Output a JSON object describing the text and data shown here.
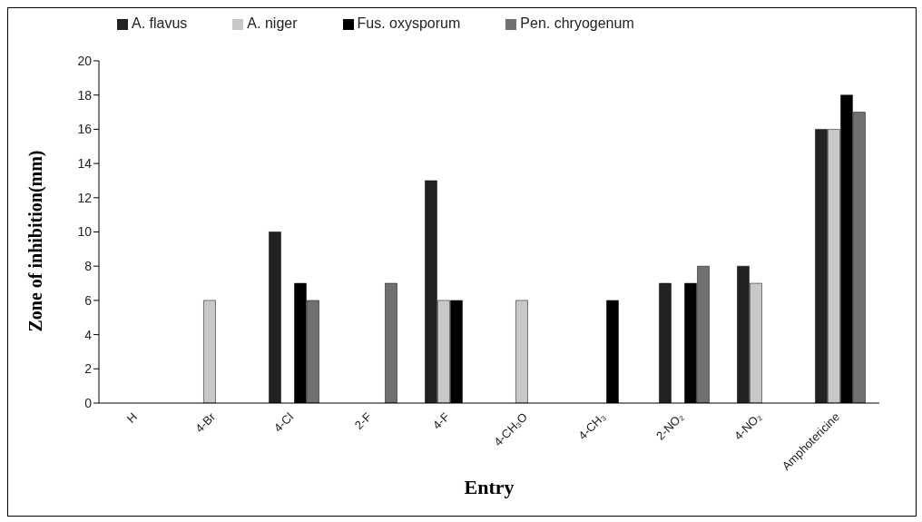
{
  "chart_data": {
    "type": "bar",
    "xlabel": "Entry",
    "ylabel": "Zone of inhibition(mm)",
    "categories": [
      "H",
      "4-Br",
      "4-Cl",
      "2-F",
      "4-F",
      "4-CH₃O",
      "4-CH₃",
      "2-NO₂",
      "4-NO₂",
      "Amphotericine"
    ],
    "series": [
      {
        "name": "A. flavus",
        "color": "#222222",
        "values": [
          null,
          null,
          10,
          null,
          13,
          null,
          null,
          7,
          8,
          16
        ]
      },
      {
        "name": "A. niger",
        "color": "#c8c8c8",
        "values": [
          null,
          6,
          null,
          null,
          6,
          6,
          null,
          null,
          7,
          16
        ]
      },
      {
        "name": "Fus. oxysporum",
        "color": "#000000",
        "values": [
          null,
          null,
          7,
          null,
          6,
          null,
          6,
          7,
          null,
          18
        ]
      },
      {
        "name": "Pen. chryogenum",
        "color": "#707070",
        "values": [
          null,
          null,
          6,
          7,
          null,
          null,
          null,
          8,
          null,
          17
        ]
      }
    ],
    "ylim": [
      0,
      20
    ],
    "yticks": [
      0,
      2,
      4,
      6,
      8,
      10,
      12,
      14,
      16,
      18,
      20
    ],
    "grid": false,
    "legend": "top left"
  }
}
